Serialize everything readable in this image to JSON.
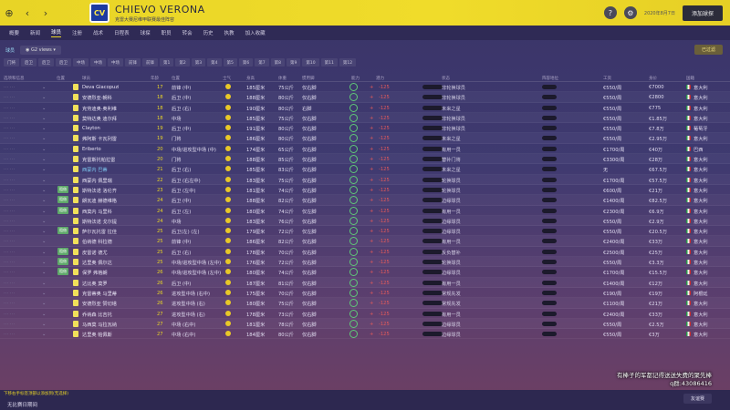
{
  "header": {
    "club_name": "CHIEVO VERONA",
    "club_sub": "克雷大赛尼维甲联赛最佳阵容",
    "date": "2020年8月7日",
    "continue_label": "添加球探",
    "badge_text": "CV"
  },
  "menu": [
    "概要",
    "新闻",
    "球员",
    "注册",
    "战术",
    "日程表",
    "球探",
    "职员",
    "转会",
    "历史",
    "执教",
    "加入收藏"
  ],
  "active_menu": "球员",
  "subbar": {
    "label": "球员",
    "view": "G2 views",
    "filter": "已过滤"
  },
  "position_tabs": [
    "门将",
    "后卫",
    "后卫",
    "后卫",
    "中场",
    "中场",
    "中场",
    "前锋",
    "前锋",
    "第1",
    "第2",
    "第3",
    "第4",
    "第5",
    "第6",
    "第7",
    "第8",
    "第9",
    "第10",
    "第11",
    "第12"
  ],
  "columns": {
    "info": "选项和信息",
    "pos": "位置",
    "name": "球员",
    "age": "年龄",
    "position": "位置",
    "morale": "士气",
    "height": "身高",
    "weight": "体重",
    "foot": "惯用脚",
    "ability": "能力",
    "potential": "潜力",
    "status": "状态",
    "role": "阵容地位",
    "wage": "工资",
    "value": "身价",
    "nationality": "国籍"
  },
  "rows": [
    {
      "name": "Deva Giacopuzi",
      "age": "17",
      "pos": "前锋 (中)",
      "height": "185厘米",
      "weight": "75公斤",
      "foot": "仅右脚",
      "status": "非轮换球员",
      "wage": "€550/周",
      "value": "€7000",
      "nat": "意大利",
      "tag": ""
    },
    {
      "name": "安德烈亚·朝科",
      "age": "18",
      "pos": "后卫 (中)",
      "height": "188厘米",
      "weight": "80公斤",
      "foot": "仅右脚",
      "status": "非轮换球员",
      "wage": "€550/周",
      "value": "€2800",
      "nat": "意大利",
      "tag": ""
    },
    {
      "name": "克劳迪奥·奥利维",
      "age": "18",
      "pos": "后卫 (右)",
      "height": "190厘米",
      "weight": "80公斤",
      "foot": "右脚",
      "status": "未来之星",
      "wage": "€550/周",
      "value": "€775",
      "nat": "意大利",
      "tag": ""
    },
    {
      "name": "莫特达奥 迪尔拜",
      "age": "18",
      "pos": "中场",
      "height": "185厘米",
      "weight": "75公斤",
      "foot": "仅右脚",
      "status": "非轮换球员",
      "wage": "€550/周",
      "value": "€1.85万",
      "nat": "意大利",
      "tag": ""
    },
    {
      "name": "Clayton",
      "age": "19",
      "pos": "后卫 (中)",
      "height": "191厘米",
      "weight": "80公斤",
      "foot": "仅右脚",
      "status": "非轮换球员",
      "wage": "€550/周",
      "value": "€7.8万",
      "nat": "葡萄牙",
      "tag": ""
    },
    {
      "name": "弗阿斯 卡瓦列雷",
      "age": "19",
      "pos": "门将",
      "height": "186厘米",
      "weight": "80公斤",
      "foot": "仅右脚",
      "status": "未来之星",
      "wage": "€550/周",
      "value": "€2.95万",
      "nat": "意大利",
      "tag": ""
    },
    {
      "name": "Eriberto",
      "age": "20",
      "pos": "中场/进攻型中场 (中)",
      "height": "174厘米",
      "weight": "65公斤",
      "foot": "仅右脚",
      "status": "有用一员",
      "wage": "€1700/周",
      "value": "€40万",
      "nat": "巴西",
      "tag": ""
    },
    {
      "name": "克雷斯托帕拉雷",
      "age": "20",
      "pos": "门将",
      "height": "188厘米",
      "weight": "85公斤",
      "foot": "仅右脚",
      "status": "替补门将",
      "wage": "€3300/周",
      "value": "€28万",
      "nat": "意大利",
      "tag": ""
    },
    {
      "name": "西蒙内 巴蒂",
      "age": "21",
      "pos": "后卫 (右)",
      "height": "185厘米",
      "weight": "83公斤",
      "foot": "仅右脚",
      "status": "未来之星",
      "wage": "无",
      "value": "€67.5万",
      "nat": "意大利",
      "tag": "",
      "blue": true
    },
    {
      "name": "西蒙内 佩里瑞",
      "age": "22",
      "pos": "后卫 (右左中)",
      "height": "183厘米",
      "weight": "75公斤",
      "foot": "仅右脚",
      "status": "轮换球员",
      "wage": "€1700/周",
      "value": "€57.5万",
      "nat": "意大利",
      "tag": ""
    },
    {
      "name": "斯特法诺 洛伦齐",
      "age": "23",
      "pos": "后卫 (左中)",
      "height": "181厘米",
      "weight": "74公斤",
      "foot": "仅右脚",
      "status": "轮换球员",
      "wage": "€600/周",
      "value": "€21万",
      "nat": "意大利",
      "tag": "租借"
    },
    {
      "name": "朗瓦迪 赫德维格",
      "age": "24",
      "pos": "后卫 (中)",
      "height": "188厘米",
      "weight": "82公斤",
      "foot": "仅右脚",
      "status": "边缘球员",
      "wage": "€1400/周",
      "value": "€82.5万",
      "nat": "意大利",
      "tag": "租借"
    },
    {
      "name": "西莫内 马里科",
      "age": "24",
      "pos": "后卫 (左)",
      "height": "180厘米",
      "weight": "74公斤",
      "foot": "仅左脚",
      "status": "有用一员",
      "wage": "€2300/周",
      "value": "€6.9万",
      "nat": "意大利",
      "tag": "租借"
    },
    {
      "name": "斯特法诺 戈尔提",
      "age": "24",
      "pos": "中场",
      "height": "183厘米",
      "weight": "76公斤",
      "foot": "仅右脚",
      "status": "边缘球员",
      "wage": "€550/周",
      "value": "€2.9万",
      "nat": "意大利",
      "tag": ""
    },
    {
      "name": "萨尔瓦托雷 拉佳",
      "age": "25",
      "pos": "后卫(左) (左)",
      "height": "179厘米",
      "weight": "72公斤",
      "foot": "仅左脚",
      "status": "边缘球员",
      "wage": "€550/周",
      "value": "€20.5万",
      "nat": "意大利",
      "tag": "租借"
    },
    {
      "name": "伯纳德 科拉德",
      "age": "25",
      "pos": "前锋 (中)",
      "height": "186厘米",
      "weight": "82公斤",
      "foot": "仅右脚",
      "status": "有用一员",
      "wage": "€2400/周",
      "value": "€33万",
      "nat": "意大利",
      "tag": ""
    },
    {
      "name": "皮雷诺 德尤",
      "age": "25",
      "pos": "后卫 (右)",
      "height": "178厘米",
      "weight": "70公斤",
      "foot": "仅右脚",
      "status": "反负替补",
      "wage": "€2500/周",
      "value": "€25万",
      "nat": "意大利",
      "tag": "租借"
    },
    {
      "name": "达里奥 佩尔达",
      "age": "25",
      "pos": "中场/进攻型中场 (左中)",
      "height": "176厘米",
      "weight": "72公斤",
      "foot": "仅右脚",
      "status": "轮换球员",
      "wage": "€550/周",
      "value": "€3.3万",
      "nat": "意大利",
      "tag": "租借"
    },
    {
      "name": "保罗 弗格朗",
      "age": "26",
      "pos": "中场/进攻型中场 (左中)",
      "height": "180厘米",
      "weight": "74公斤",
      "foot": "仅右脚",
      "status": "边缘球员",
      "wage": "€1700/周",
      "value": "€15.5万",
      "nat": "意大利",
      "tag": "租借"
    },
    {
      "name": "达比奥 莫罗",
      "age": "26",
      "pos": "后卫 (中)",
      "height": "187厘米",
      "weight": "81公斤",
      "foot": "仅右脚",
      "status": "有用一员",
      "wage": "€1400/周",
      "value": "€12万",
      "nat": "意大利",
      "tag": ""
    },
    {
      "name": "克雷蒂奥 马里蒂",
      "age": "26",
      "pos": "进攻型中场 (右中)",
      "height": "175厘米",
      "weight": "70公斤",
      "foot": "仅右脚",
      "status": "常规先发",
      "wage": "€190/周",
      "value": "€19万",
      "nat": "阿根廷",
      "tag": ""
    },
    {
      "name": "安德烈亚 赞切塔",
      "age": "26",
      "pos": "进攻型中场 (右)",
      "height": "180厘米",
      "weight": "75公斤",
      "foot": "仅右脚",
      "status": "常规先发",
      "wage": "€1100/周",
      "value": "€21万",
      "nat": "意大利",
      "tag": ""
    },
    {
      "name": "乔纳森 比吉托",
      "age": "27",
      "pos": "进攻型中场 (右)",
      "height": "178厘米",
      "weight": "73公斤",
      "foot": "仅右脚",
      "status": "有用一员",
      "wage": "€2400/周",
      "value": "€33万",
      "nat": "意大利",
      "tag": ""
    },
    {
      "name": "马西莫 马拉瓦纳",
      "age": "27",
      "pos": "中场 (右中)",
      "height": "181厘米",
      "weight": "78公斤",
      "foot": "仅右脚",
      "status": "边缘球员",
      "wage": "€550/周",
      "value": "€2.5万",
      "nat": "意大利",
      "tag": ""
    },
    {
      "name": "达里奥 帕佩斯",
      "age": "27",
      "pos": "中场 (右中)",
      "height": "184厘米",
      "weight": "80公斤",
      "foot": "仅右脚",
      "status": "边缘球员",
      "wage": "€550/周",
      "value": "€3万",
      "nat": "意大利",
      "tag": ""
    }
  ],
  "ability_markers": {
    "plus": "+",
    "x": "-125"
  },
  "bottom": {
    "note": "下移右手标签顶部以添加到(无选择)",
    "left": "无比赛日期间",
    "friend": "友谊赛"
  },
  "overlay": {
    "line1": "有棒子的军都记得送送失费的聚先棒",
    "line2": "q群:43086416"
  },
  "colors": {
    "accent": "#e8d426",
    "ring": "#5fc878",
    "negative": "#e65a5a"
  }
}
